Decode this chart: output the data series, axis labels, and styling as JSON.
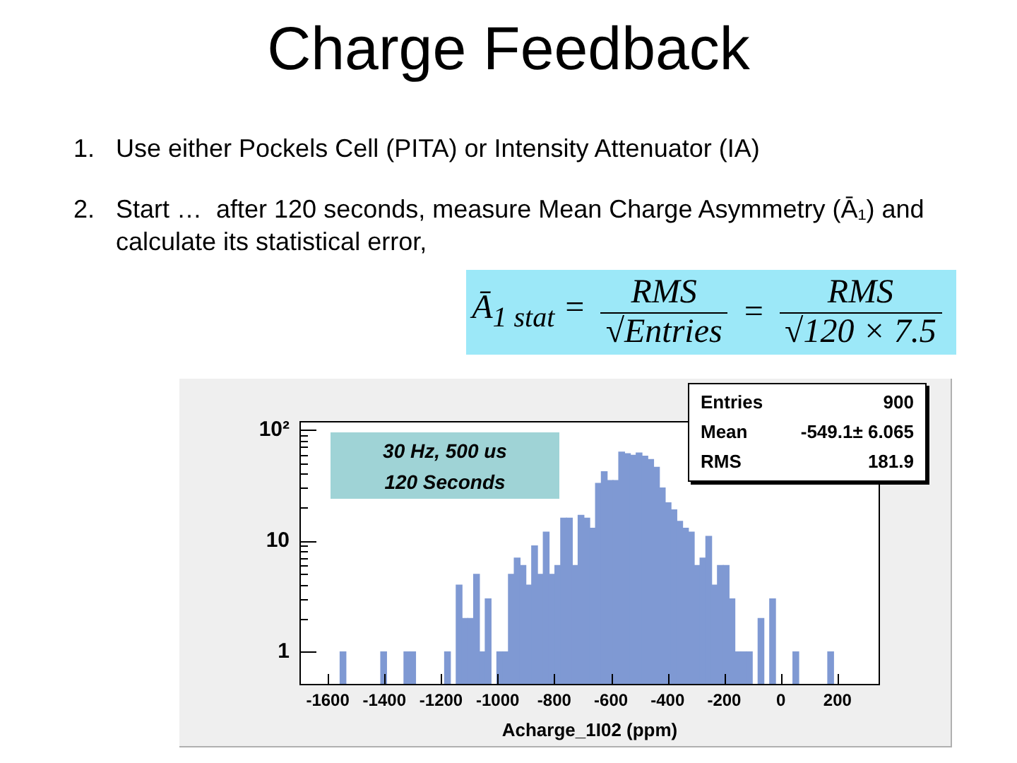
{
  "chart_data": {
    "type": "histogram",
    "title": "Charge Feedback",
    "annotations": [
      "1. Use either Pockels Cell (PITA) or Intensity Attenuator (IA)",
      "2. Start …  after 120 seconds, measure Mean Charge Asymmetry (Ā₁) and calculate its statistical error,",
      "Ā$_{1 stat}$ =",
      "RMS",
      "√Entries",
      "=",
      "RMS",
      "√120 × 7.5",
      "30 Hz, 500 us\n120 Seconds",
      "Entries",
      "900",
      "Mean",
      "-549.1± 6.065",
      "RMS",
      "181.9"
    ],
    "xlabel": "Acharge_1I02 (ppm)",
    "bins": [
      -1700,
      -1679.5,
      -1659,
      -1638.5,
      -1618,
      -1597.5,
      -1577,
      -1556.5,
      -1536,
      -1515.5,
      -1495,
      -1474.5,
      -1454,
      -1433.5,
      -1413,
      -1392.5,
      -1372,
      -1351.5,
      -1331,
      -1310.5,
      -1290,
      -1269.5,
      -1249,
      -1228.5,
      -1208,
      -1187.5,
      -1167,
      -1146.5,
      -1126,
      -1105.5,
      -1085,
      -1064.5,
      -1044,
      -1023.5,
      -1003,
      -982.5,
      -962,
      -941.5,
      -921,
      -900.5,
      -880,
      -859.5,
      -839,
      -818.5,
      -798,
      -777.5,
      -757,
      -736.5,
      -716,
      -695.5,
      -675,
      -654.5,
      -634,
      -613.5,
      -593,
      -572.5,
      -552,
      -531.5,
      -511,
      -490.5,
      -470,
      -449.5,
      -429,
      -408.5,
      -388,
      -367.5,
      -347,
      -326.5,
      -306,
      -285.5,
      -265,
      -244.5,
      -224,
      -203.5,
      -183,
      -162.5,
      -142,
      -121.5,
      -101,
      -80.5,
      -60,
      -39.5,
      -19,
      1.5,
      22,
      42.5,
      63,
      83.5,
      104,
      124.5,
      145,
      165.5,
      186,
      206.5,
      227,
      247.5,
      268,
      288.5,
      309,
      329.5,
      350
    ],
    "values": [
      null,
      null,
      null,
      null,
      null,
      null,
      null,
      1,
      null,
      null,
      null,
      null,
      null,
      null,
      1,
      null,
      null,
      null,
      1,
      1,
      null,
      null,
      null,
      null,
      null,
      1,
      null,
      4,
      2,
      2,
      5,
      1,
      3,
      null,
      1,
      1,
      5,
      7,
      6,
      4,
      9,
      5,
      12,
      5,
      6,
      16,
      16,
      6,
      17,
      16,
      13,
      33,
      42,
      35,
      35,
      63,
      61,
      59,
      62,
      58,
      54,
      46,
      30,
      22,
      19,
      15,
      13,
      12,
      6,
      7,
      11,
      4,
      6,
      6,
      3,
      1,
      1,
      1,
      null,
      2,
      null,
      3,
      null,
      null,
      null,
      1,
      null,
      null,
      null,
      null,
      null,
      1,
      null,
      null,
      null,
      null,
      null,
      null,
      null,
      null
    ],
    "color": "#7f99d3",
    "xlim": [
      -1700,
      350
    ],
    "xticks": [
      -1600,
      -1400,
      -1200,
      -1000,
      -800,
      -600,
      -400,
      -200,
      0,
      200
    ],
    "ylim": [
      0.5,
      120
    ],
    "yticks": [
      1,
      {
        "value": 2,
        "label": null
      },
      {
        "value": 3,
        "label": null
      },
      {
        "value": 4,
        "label": null
      },
      {
        "value": 5,
        "label": null
      },
      {
        "value": 6,
        "label": null
      },
      {
        "value": 7,
        "label": null
      },
      {
        "value": 8,
        "label": null
      },
      {
        "value": 9,
        "label": null
      },
      10,
      {
        "value": 20,
        "label": null
      },
      {
        "value": 30,
        "label": null
      },
      {
        "value": 40,
        "label": null
      },
      {
        "value": 50,
        "label": null
      },
      {
        "value": 60,
        "label": null
      },
      {
        "value": 70,
        "label": null
      },
      {
        "value": 80,
        "label": null
      },
      {
        "value": 90,
        "label": null
      },
      {
        "value": 100,
        "label": "10²"
      }
    ],
    "log": true,
    "grid": false,
    "legend": false
  }
}
